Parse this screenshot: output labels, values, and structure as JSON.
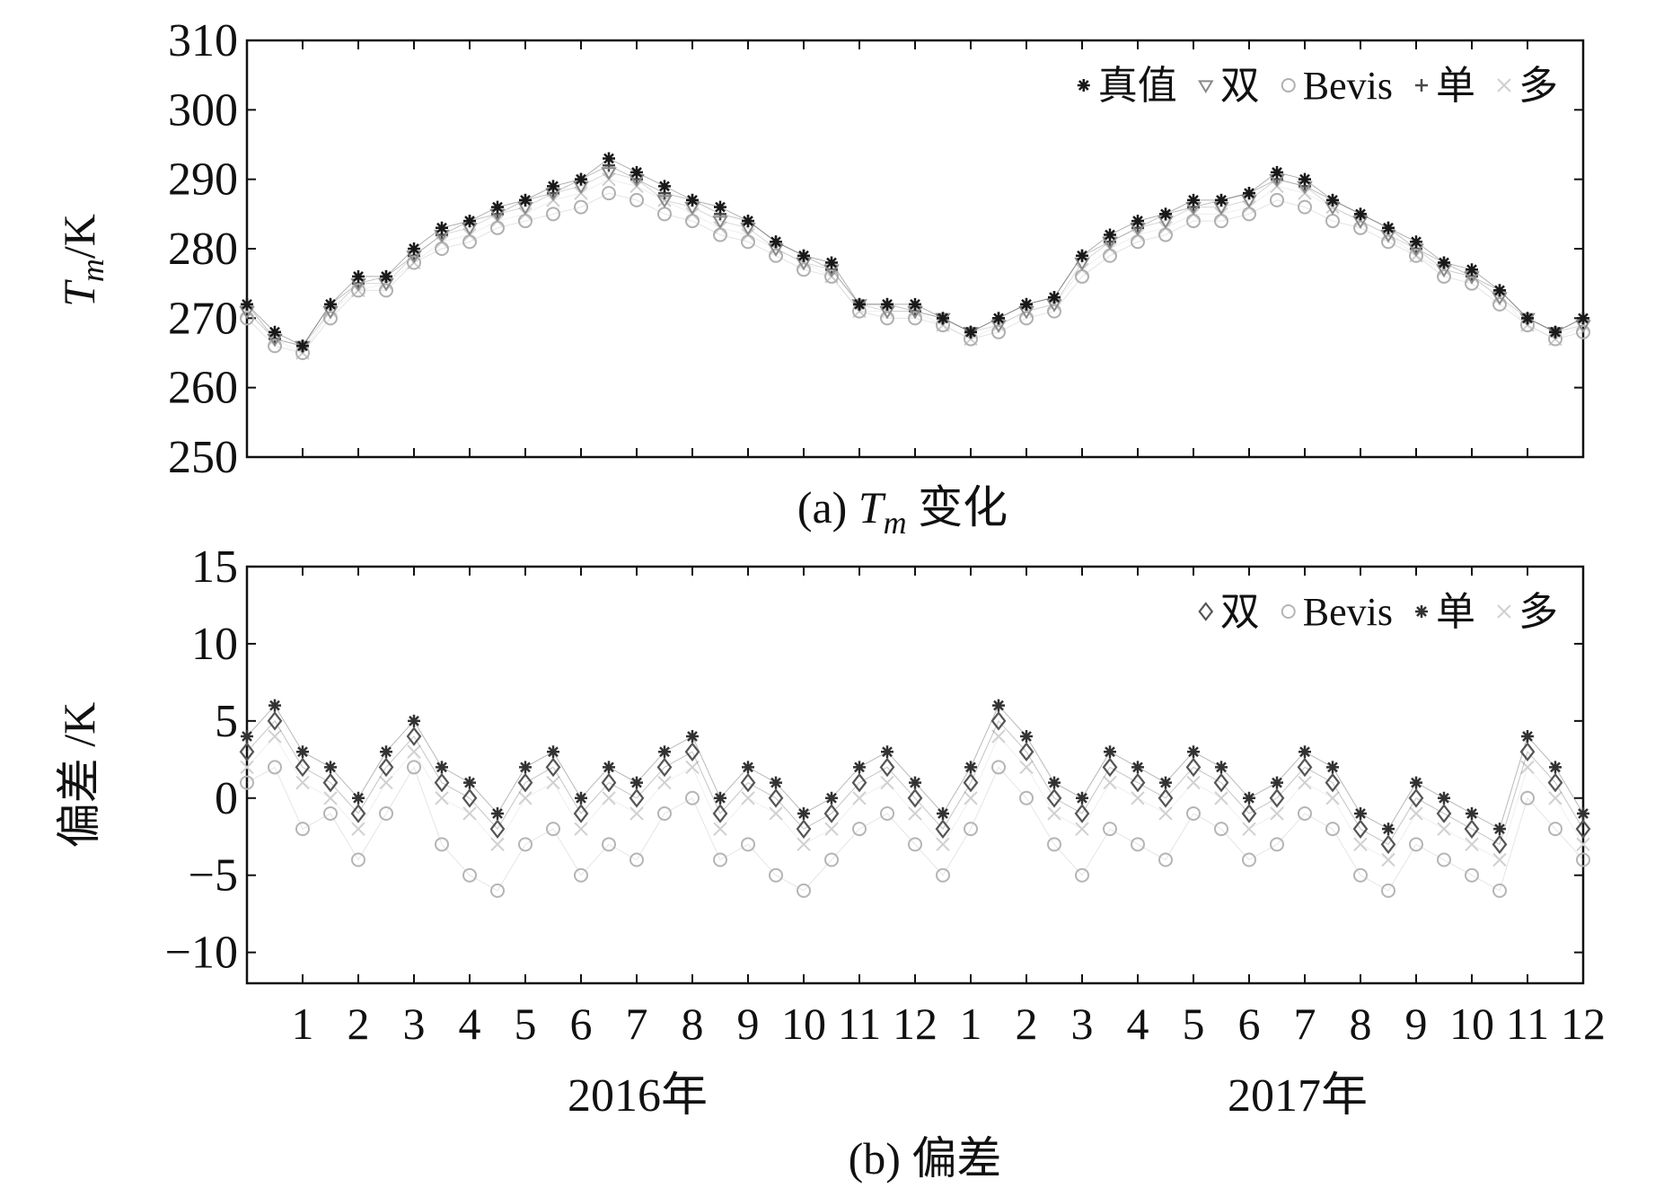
{
  "chart_data": [
    {
      "type": "scatter",
      "caption": "(a) Tm 变化",
      "caption_parts": {
        "prefix": "(a) ",
        "var": "T",
        "sub": "m",
        "suffix": " 变化"
      },
      "ylabel_parts": {
        "var": "T",
        "sub": "m",
        "unit": "/K"
      },
      "ylim": [
        250,
        310
      ],
      "yticks": [
        250,
        260,
        270,
        280,
        290,
        300,
        310
      ],
      "xlim": [
        0,
        24
      ],
      "legend_position": "top-right",
      "x": [
        0,
        0.5,
        1,
        1.5,
        2,
        2.5,
        3,
        3.5,
        4,
        4.5,
        5,
        5.5,
        6,
        6.5,
        7,
        7.5,
        8,
        8.5,
        9,
        9.5,
        10,
        10.5,
        11,
        11.5,
        12,
        12.5,
        13,
        13.5,
        14,
        14.5,
        15,
        15.5,
        16,
        16.5,
        17,
        17.5,
        18,
        18.5,
        19,
        19.5,
        20,
        20.5,
        21,
        21.5,
        22,
        22.5,
        23,
        23.5,
        24
      ],
      "series": [
        {
          "name": "真值",
          "color": "#1a1a1a",
          "marker": "star",
          "values": [
            272,
            268,
            266,
            272,
            276,
            276,
            280,
            283,
            284,
            286,
            287,
            289,
            290,
            293,
            291,
            289,
            287,
            286,
            284,
            281,
            279,
            278,
            272,
            272,
            272,
            270,
            268,
            270,
            272,
            273,
            279,
            282,
            284,
            285,
            287,
            287,
            288,
            291,
            290,
            287,
            285,
            283,
            281,
            278,
            277,
            274,
            270,
            268,
            270
          ]
        },
        {
          "name": "双",
          "color": "#8a8a8a",
          "marker": "triangle-down",
          "values": [
            271,
            267,
            266,
            271,
            275,
            275,
            279,
            282,
            283,
            285,
            286,
            288,
            289,
            291,
            290,
            287,
            286,
            284,
            283,
            280,
            278,
            277,
            272,
            271,
            271,
            270,
            268,
            269,
            271,
            272,
            278,
            281,
            283,
            284,
            286,
            286,
            287,
            290,
            289,
            286,
            284,
            282,
            280,
            277,
            276,
            273,
            270,
            268,
            269
          ]
        },
        {
          "name": "Bevis",
          "color": "#b0b0b0",
          "marker": "circle",
          "values": [
            270,
            266,
            265,
            270,
            274,
            274,
            278,
            280,
            281,
            283,
            284,
            285,
            286,
            288,
            287,
            285,
            284,
            282,
            281,
            279,
            277,
            276,
            271,
            270,
            270,
            269,
            267,
            268,
            270,
            271,
            276,
            279,
            281,
            282,
            284,
            284,
            285,
            287,
            286,
            284,
            283,
            281,
            279,
            276,
            275,
            272,
            269,
            267,
            268
          ]
        },
        {
          "name": "单",
          "color": "#4a4a4a",
          "marker": "plus",
          "values": [
            272,
            267,
            266,
            272,
            275,
            276,
            279,
            282,
            284,
            285,
            287,
            288,
            290,
            292,
            290,
            288,
            287,
            285,
            284,
            281,
            279,
            277,
            272,
            272,
            271,
            270,
            268,
            270,
            272,
            273,
            279,
            281,
            283,
            285,
            286,
            287,
            288,
            290,
            289,
            287,
            285,
            283,
            280,
            278,
            276,
            274,
            270,
            268,
            270
          ]
        },
        {
          "name": "多",
          "color": "#cfcfcf",
          "marker": "x",
          "values": [
            271,
            267,
            265,
            271,
            274,
            275,
            278,
            281,
            282,
            284,
            285,
            287,
            288,
            290,
            289,
            287,
            285,
            283,
            282,
            280,
            278,
            276,
            271,
            271,
            271,
            269,
            267,
            269,
            271,
            272,
            277,
            280,
            282,
            283,
            285,
            285,
            286,
            289,
            288,
            286,
            284,
            282,
            279,
            277,
            276,
            273,
            269,
            267,
            269
          ]
        }
      ]
    },
    {
      "type": "scatter",
      "caption": "(b) 偏差",
      "ylabel": "偏差 /K",
      "ylim": [
        -12,
        15
      ],
      "yticks": [
        -10,
        -5,
        0,
        5,
        10,
        15
      ],
      "ytick_labels": [
        "−10",
        "−5",
        "0",
        "5",
        "10",
        "15"
      ],
      "xlim": [
        0,
        24
      ],
      "xticks": [
        1,
        2,
        3,
        4,
        5,
        6,
        7,
        8,
        9,
        10,
        11,
        12,
        13,
        14,
        15,
        16,
        17,
        18,
        19,
        20,
        21,
        22,
        23,
        24
      ],
      "xtick_labels": [
        "1",
        "2",
        "3",
        "4",
        "5",
        "6",
        "7",
        "8",
        "9",
        "10",
        "11",
        "12",
        "1",
        "2",
        "3",
        "4",
        "5",
        "6",
        "7",
        "8",
        "9",
        "10",
        "11",
        "12"
      ],
      "year_labels": [
        "2016年",
        "2017年"
      ],
      "legend_position": "top-right",
      "x": [
        0,
        0.5,
        1,
        1.5,
        2,
        2.5,
        3,
        3.5,
        4,
        4.5,
        5,
        5.5,
        6,
        6.5,
        7,
        7.5,
        8,
        8.5,
        9,
        9.5,
        10,
        10.5,
        11,
        11.5,
        12,
        12.5,
        13,
        13.5,
        14,
        14.5,
        15,
        15.5,
        16,
        16.5,
        17,
        17.5,
        18,
        18.5,
        19,
        19.5,
        20,
        20.5,
        21,
        21.5,
        22,
        22.5,
        23,
        23.5,
        24
      ],
      "series": [
        {
          "name": "双",
          "color": "#555555",
          "marker": "diamond",
          "values": [
            3,
            5,
            2,
            1,
            -1,
            2,
            4,
            1,
            0,
            -2,
            1,
            2,
            -1,
            1,
            0,
            2,
            3,
            -1,
            1,
            0,
            -2,
            -1,
            1,
            2,
            0,
            -2,
            1,
            5,
            3,
            0,
            -1,
            2,
            1,
            0,
            2,
            1,
            -1,
            0,
            2,
            1,
            -2,
            -3,
            0,
            -1,
            -2,
            -3,
            3,
            1,
            -2
          ]
        },
        {
          "name": "Bevis",
          "color": "#b5b5b5",
          "marker": "circle",
          "values": [
            1,
            2,
            -2,
            -1,
            -4,
            -1,
            2,
            -3,
            -5,
            -6,
            -3,
            -2,
            -5,
            -3,
            -4,
            -1,
            0,
            -4,
            -3,
            -5,
            -6,
            -4,
            -2,
            -1,
            -3,
            -5,
            -2,
            2,
            0,
            -3,
            -5,
            -2,
            -3,
            -4,
            -1,
            -2,
            -4,
            -3,
            -1,
            -2,
            -5,
            -6,
            -3,
            -4,
            -5,
            -6,
            0,
            -2,
            -4
          ]
        },
        {
          "name": "单",
          "color": "#333333",
          "marker": "star",
          "values": [
            4,
            6,
            3,
            2,
            0,
            3,
            5,
            2,
            1,
            -1,
            2,
            3,
            0,
            2,
            1,
            3,
            4,
            0,
            2,
            1,
            -1,
            0,
            2,
            3,
            1,
            -1,
            2,
            6,
            4,
            1,
            0,
            3,
            2,
            1,
            3,
            2,
            0,
            1,
            3,
            2,
            -1,
            -2,
            1,
            0,
            -1,
            -2,
            4,
            2,
            -1
          ]
        },
        {
          "name": "多",
          "color": "#d0d0d0",
          "marker": "x",
          "values": [
            2,
            4,
            1,
            0,
            -2,
            1,
            3,
            0,
            -1,
            -3,
            0,
            1,
            -2,
            0,
            -1,
            1,
            2,
            -2,
            0,
            -1,
            -3,
            -2,
            0,
            1,
            -1,
            -3,
            0,
            4,
            2,
            -1,
            -2,
            1,
            0,
            -1,
            1,
            0,
            -2,
            -1,
            1,
            0,
            -3,
            -4,
            -1,
            -2,
            -3,
            -4,
            2,
            0,
            -3
          ]
        }
      ]
    }
  ]
}
